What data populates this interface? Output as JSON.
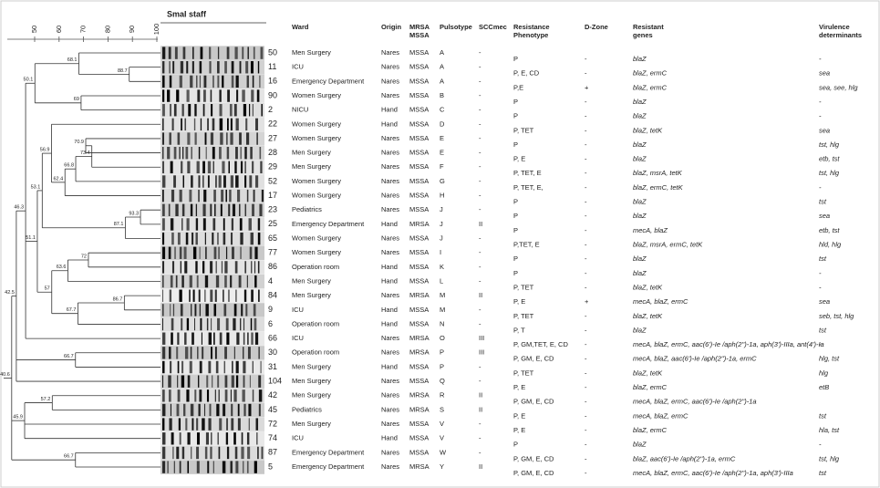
{
  "title": "SmaI staff",
  "scale": {
    "ticks": [
      50,
      60,
      70,
      80,
      90,
      100
    ]
  },
  "header": {
    "ward": "Ward",
    "origin": "Origin",
    "type": [
      "MRSA",
      "MSSA"
    ],
    "pulsotype": "Pulsotype",
    "sccmec": "SCCmec",
    "phenotype": [
      "Resistance",
      "Phenotype"
    ],
    "dzone": "D-Zone",
    "genes": [
      "Resistant",
      "genes"
    ],
    "virulence": [
      "Virulence",
      "determinants"
    ]
  },
  "dendrogram": {
    "nodes": [
      88.7,
      68.1,
      50.1,
      69.0,
      56.9,
      70.9,
      73.4,
      66.8,
      62.4,
      93.3,
      87.1,
      53.1,
      72.0,
      63.6,
      57.0,
      86.7,
      67.7,
      51.1,
      46.3,
      66.7,
      42.5,
      57.2,
      45.9,
      40.6,
      66.7
    ]
  },
  "rows": [
    {
      "id": "50",
      "ward": "Men Surgery",
      "origin": "Nares",
      "type": "MSSA",
      "pulsotype": "A",
      "sccmec": "-",
      "phenotype": "P",
      "dzone": "-",
      "genes": "blaZ",
      "virulence": "-"
    },
    {
      "id": "11",
      "ward": "ICU",
      "origin": "Nares",
      "type": "MSSA",
      "pulsotype": "A",
      "sccmec": "-",
      "phenotype": "P, E, CD",
      "dzone": "-",
      "genes": "blaZ, ermC",
      "virulence": "sea"
    },
    {
      "id": "16",
      "ward": "Emergency Department",
      "origin": "Nares",
      "type": "MSSA",
      "pulsotype": "A",
      "sccmec": "-",
      "phenotype": "P,E",
      "dzone": "+",
      "genes": "blaZ, ermC",
      "virulence": "sea, see, hlg"
    },
    {
      "id": "90",
      "ward": "Women Surgery",
      "origin": "Nares",
      "type": "MSSA",
      "pulsotype": "B",
      "sccmec": "-",
      "phenotype": "P",
      "dzone": "-",
      "genes": "blaZ",
      "virulence": "-"
    },
    {
      "id": "2",
      "ward": "NICU",
      "origin": "Hand",
      "type": "MSSA",
      "pulsotype": "C",
      "sccmec": "-",
      "phenotype": "P",
      "dzone": "-",
      "genes": "blaZ",
      "virulence": "-"
    },
    {
      "id": "22",
      "ward": "Women Surgery",
      "origin": "Hand",
      "type": "MSSA",
      "pulsotype": "D",
      "sccmec": "-",
      "phenotype": "P, TET",
      "dzone": "-",
      "genes": "blaZ, tetK",
      "virulence": "sea"
    },
    {
      "id": "27",
      "ward": "Women Surgery",
      "origin": "Nares",
      "type": "MSSA",
      "pulsotype": "E",
      "sccmec": "-",
      "phenotype": "P",
      "dzone": "-",
      "genes": "blaZ",
      "virulence": "tst, hlg"
    },
    {
      "id": "28",
      "ward": "Men Surgery",
      "origin": "Nares",
      "type": "MSSA",
      "pulsotype": "E",
      "sccmec": "-",
      "phenotype": "P, E",
      "dzone": "-",
      "genes": "blaZ",
      "virulence": "etb, tst"
    },
    {
      "id": "29",
      "ward": "Men Surgery",
      "origin": "Nares",
      "type": "MSSA",
      "pulsotype": "F",
      "sccmec": "-",
      "phenotype": "P, TET, E",
      "dzone": "-",
      "genes": "blaZ, msrA, tetK",
      "virulence": "tst, hlg"
    },
    {
      "id": "52",
      "ward": "Women Surgery",
      "origin": "Nares",
      "type": "MSSA",
      "pulsotype": "G",
      "sccmec": "-",
      "phenotype": "P, TET, E,",
      "dzone": "-",
      "genes": "blaZ, ermC, tetK",
      "virulence": "-"
    },
    {
      "id": "17",
      "ward": "Women Surgery",
      "origin": "Nares",
      "type": "MSSA",
      "pulsotype": "H",
      "sccmec": "-",
      "phenotype": "P",
      "dzone": "-",
      "genes": "blaZ",
      "virulence": "tst"
    },
    {
      "id": "23",
      "ward": "Pediatrics",
      "origin": "Nares",
      "type": "MSSA",
      "pulsotype": "J",
      "sccmec": "-",
      "phenotype": "P",
      "dzone": "-",
      "genes": "blaZ",
      "virulence": "sea"
    },
    {
      "id": "25",
      "ward": "Emergency Department",
      "origin": "Hand",
      "type": "MRSA",
      "pulsotype": "J",
      "sccmec": "II",
      "phenotype": "P",
      "dzone": "-",
      "genes": "mecA, blaZ",
      "virulence": "etb, tst"
    },
    {
      "id": "65",
      "ward": "Women Surgery",
      "origin": "Nares",
      "type": "MSSA",
      "pulsotype": "J",
      "sccmec": "-",
      "phenotype": "P,TET, E",
      "dzone": "-",
      "genes": "blaZ, msrA, ermC, tetK",
      "virulence": "hld, hlg"
    },
    {
      "id": "77",
      "ward": "Women Surgery",
      "origin": "Nares",
      "type": "MSSA",
      "pulsotype": "I",
      "sccmec": "-",
      "phenotype": "P",
      "dzone": "-",
      "genes": "blaZ",
      "virulence": "tst"
    },
    {
      "id": "86",
      "ward": "Operation room",
      "origin": "Hand",
      "type": "MSSA",
      "pulsotype": "K",
      "sccmec": "-",
      "phenotype": "P",
      "dzone": "-",
      "genes": "blaZ",
      "virulence": "-"
    },
    {
      "id": "4",
      "ward": "Men Surgery",
      "origin": "Hand",
      "type": "MSSA",
      "pulsotype": "L",
      "sccmec": "-",
      "phenotype": "P, TET",
      "dzone": "-",
      "genes": "blaZ, tetK",
      "virulence": "-"
    },
    {
      "id": "84",
      "ward": "Men Surgery",
      "origin": "Nares",
      "type": "MRSA",
      "pulsotype": "M",
      "sccmec": "II",
      "phenotype": "P, E",
      "dzone": "+",
      "genes": "mecA, blaZ, ermC",
      "virulence": "sea"
    },
    {
      "id": "9",
      "ward": "ICU",
      "origin": "Hand",
      "type": "MSSA",
      "pulsotype": "M",
      "sccmec": "-",
      "phenotype": "P, TET",
      "dzone": "-",
      "genes": "blaZ, tetK",
      "virulence": "seb, tst, hlg"
    },
    {
      "id": "6",
      "ward": "Operation room",
      "origin": "Hand",
      "type": "MSSA",
      "pulsotype": "N",
      "sccmec": "-",
      "phenotype": "P, T",
      "dzone": "-",
      "genes": "blaZ",
      "virulence": "tst"
    },
    {
      "id": "66",
      "ward": "ICU",
      "origin": "Nares",
      "type": "MRSA",
      "pulsotype": "O",
      "sccmec": "III",
      "phenotype": "P, GM,TET, E, CD",
      "dzone": "-",
      "genes": "mecA, blaZ, ermC, aac(6')-Ie /aph(2'')-1a, aph(3')-IIIa, ant(4')-Ia",
      "virulence": "-"
    },
    {
      "id": "30",
      "ward": "Operation room",
      "origin": "Nares",
      "type": "MRSA",
      "pulsotype": "P",
      "sccmec": "III",
      "phenotype": "P, GM, E, CD",
      "dzone": "-",
      "genes": "mecA, blaZ, aac(6')-Ie /aph(2'')-1a, ermC",
      "virulence": "hlg, tst"
    },
    {
      "id": "31",
      "ward": "Men Surgery",
      "origin": "Hand",
      "type": "MSSA",
      "pulsotype": "P",
      "sccmec": "-",
      "phenotype": "P, TET",
      "dzone": "-",
      "genes": "blaZ, tetK",
      "virulence": "hlg"
    },
    {
      "id": "104",
      "ward": "Men Surgery",
      "origin": "Nares",
      "type": "MSSA",
      "pulsotype": "Q",
      "sccmec": "-",
      "phenotype": "P, E",
      "dzone": "-",
      "genes": "blaZ, ermC",
      "virulence": "etB"
    },
    {
      "id": "42",
      "ward": "Men Surgery",
      "origin": "Nares",
      "type": "MRSA",
      "pulsotype": "R",
      "sccmec": "II",
      "phenotype": "P, GM, E, CD",
      "dzone": "-",
      "genes": "mecA, blaZ, ermC, aac(6')-Ie /aph(2'')-1a"
    },
    {
      "id": "45",
      "ward": "Pediatrics",
      "origin": "Nares",
      "type": "MRSA",
      "pulsotype": "S",
      "sccmec": "II",
      "phenotype": "P, E",
      "dzone": "-",
      "genes": "mecA, blaZ, ermC",
      "virulence": "tst"
    },
    {
      "id": "72",
      "ward": "Men Surgery",
      "origin": "Nares",
      "type": "MSSA",
      "pulsotype": "V",
      "sccmec": "-",
      "phenotype": "P, E",
      "dzone": "-",
      "genes": "blaZ, ermC",
      "virulence": "hla, tst"
    },
    {
      "id": "74",
      "ward": "ICU",
      "origin": "Hand",
      "type": "MSSA",
      "pulsotype": "V",
      "sccmec": "-",
      "phenotype": "P",
      "dzone": "-",
      "genes": "blaZ",
      "virulence": "-"
    },
    {
      "id": "87",
      "ward": "Emergency Department",
      "origin": "Nares",
      "type": "MSSA",
      "pulsotype": "W",
      "sccmec": "-",
      "phenotype": "P, GM, E, CD",
      "dzone": "-",
      "genes": "blaZ, aac(6')-Ie /aph(2'')-1a, ermC",
      "virulence": "tst, hlg"
    },
    {
      "id": "5",
      "ward": "Emergency Department",
      "origin": "Nares",
      "type": "MRSA",
      "pulsotype": "Y",
      "sccmec": "II",
      "phenotype": "P, GM, E, CD",
      "dzone": "-",
      "genes": "mecA, blaZ, ermC, aac(6')-Ie /aph(2'')-1a, aph(3')-IIIa",
      "virulence": "tst"
    }
  ]
}
